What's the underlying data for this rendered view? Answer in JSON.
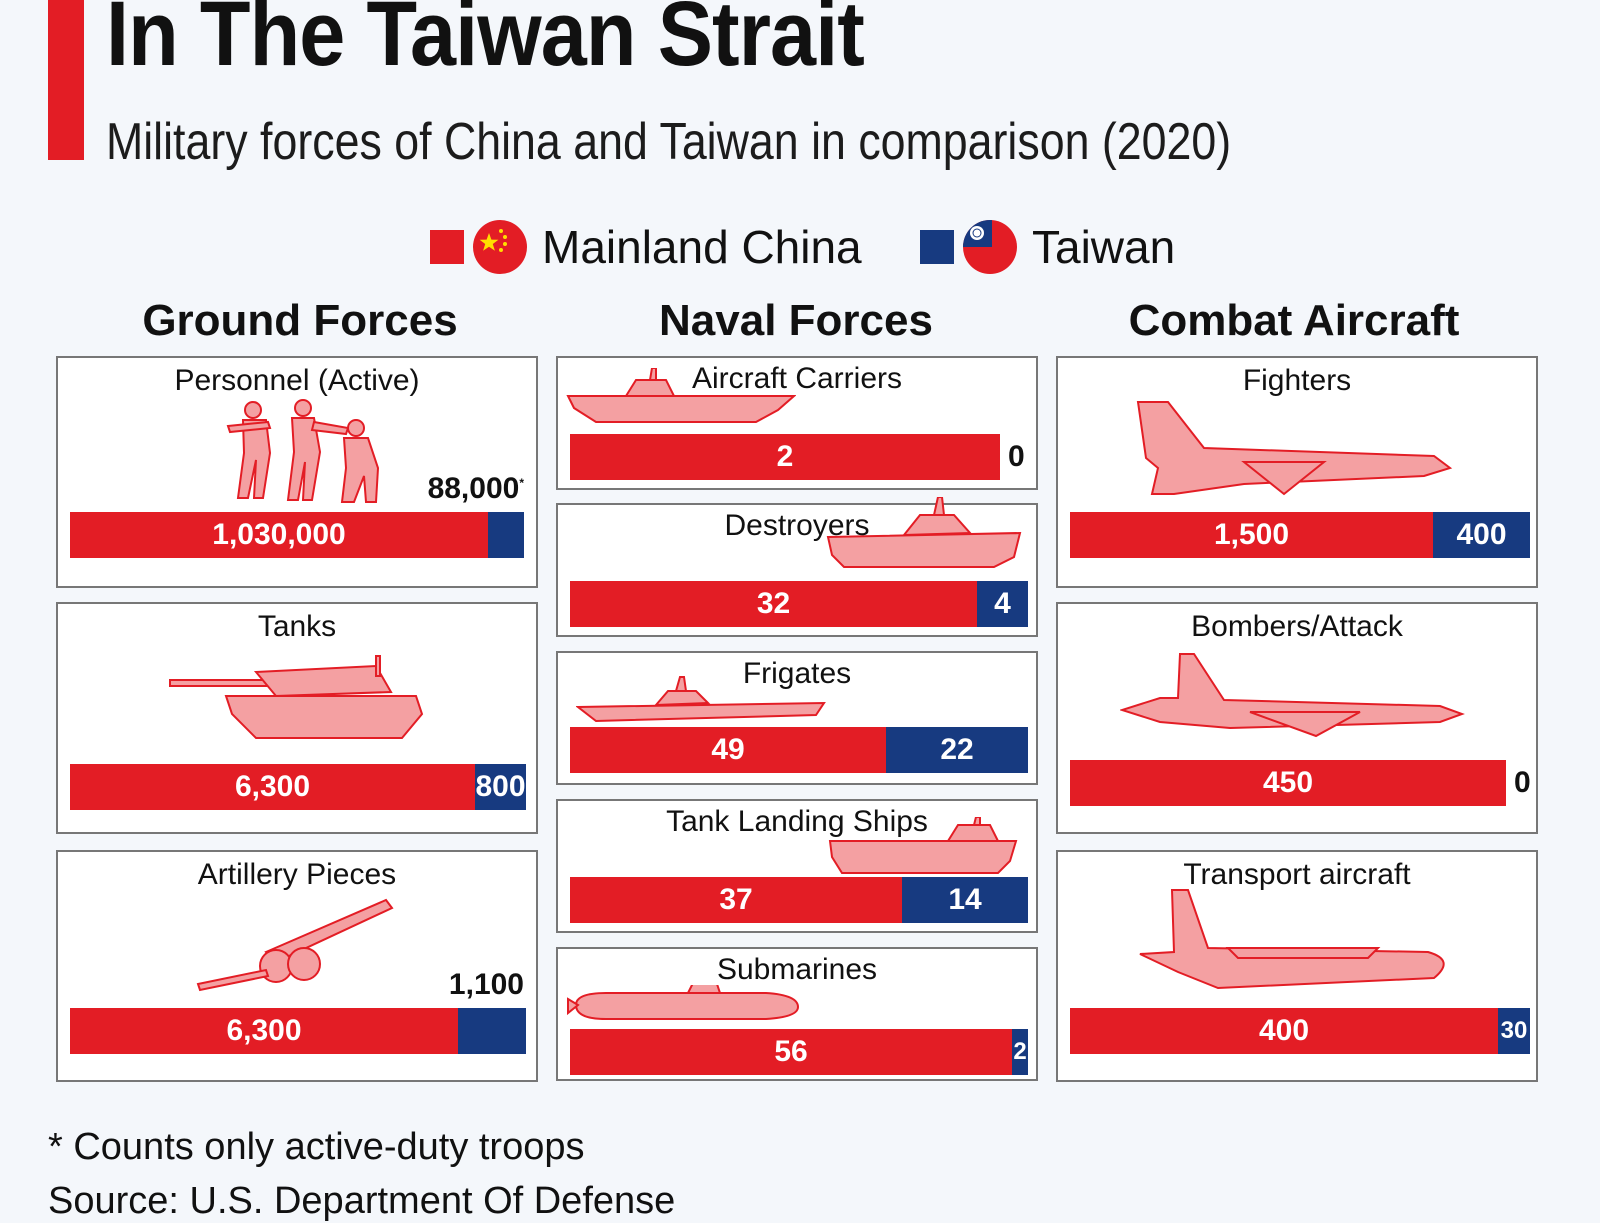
{
  "header": {
    "title": "In The Taiwan Strait",
    "subtitle": "Military forces of China and Taiwan in comparison (2020)"
  },
  "legend": {
    "china_label": "Mainland China",
    "taiwan_label": "Taiwan",
    "china_color": "#e31d25",
    "taiwan_color": "#173a80"
  },
  "columns": [
    "Ground Forces",
    "Naval Forces",
    "Combat Aircraft"
  ],
  "chart_data": {
    "type": "bar",
    "orientation": "horizontal-stacked",
    "series": [
      {
        "name": "Mainland China",
        "color": "#e31d25"
      },
      {
        "name": "Taiwan",
        "color": "#173a80"
      }
    ],
    "panels": [
      {
        "group": "Ground Forces",
        "title": "Personnel (Active)",
        "icon": "soldiers-icon",
        "china": 1030000,
        "taiwan": 88000,
        "china_label": "1,030,000",
        "taiwan_label": "88,000",
        "note": "*"
      },
      {
        "group": "Ground Forces",
        "title": "Tanks",
        "icon": "tank-icon",
        "china": 6300,
        "taiwan": 800,
        "china_label": "6,300",
        "taiwan_label": "800"
      },
      {
        "group": "Ground Forces",
        "title": "Artillery Pieces",
        "icon": "artillery-icon",
        "china": 6300,
        "taiwan": 1100,
        "china_label": "6,300",
        "taiwan_label": "1,100"
      },
      {
        "group": "Naval Forces",
        "title": "Aircraft Carriers",
        "icon": "carrier-icon",
        "china": 2,
        "taiwan": 0,
        "china_label": "2",
        "taiwan_label": "0"
      },
      {
        "group": "Naval Forces",
        "title": "Destroyers",
        "icon": "destroyer-icon",
        "china": 32,
        "taiwan": 4,
        "china_label": "32",
        "taiwan_label": "4"
      },
      {
        "group": "Naval Forces",
        "title": "Frigates",
        "icon": "frigate-icon",
        "china": 49,
        "taiwan": 22,
        "china_label": "49",
        "taiwan_label": "22"
      },
      {
        "group": "Naval Forces",
        "title": "Tank Landing Ships",
        "icon": "landing-ship-icon",
        "china": 37,
        "taiwan": 14,
        "china_label": "37",
        "taiwan_label": "14"
      },
      {
        "group": "Naval Forces",
        "title": "Submarines",
        "icon": "submarine-icon",
        "china": 56,
        "taiwan": 2,
        "china_label": "56",
        "taiwan_label": "2"
      },
      {
        "group": "Combat Aircraft",
        "title": "Fighters",
        "icon": "fighter-jet-icon",
        "china": 1500,
        "taiwan": 400,
        "china_label": "1,500",
        "taiwan_label": "400"
      },
      {
        "group": "Combat Aircraft",
        "title": "Bombers/Attack",
        "icon": "bomber-icon",
        "china": 450,
        "taiwan": 0,
        "china_label": "450",
        "taiwan_label": "0"
      },
      {
        "group": "Combat Aircraft",
        "title": "Transport aircraft",
        "icon": "transport-plane-icon",
        "china": 400,
        "taiwan": 30,
        "china_label": "400",
        "taiwan_label": "30"
      }
    ]
  },
  "footer": {
    "footnote": "* Counts only active-duty troops",
    "source": "Source: U.S. Department Of Defense"
  }
}
